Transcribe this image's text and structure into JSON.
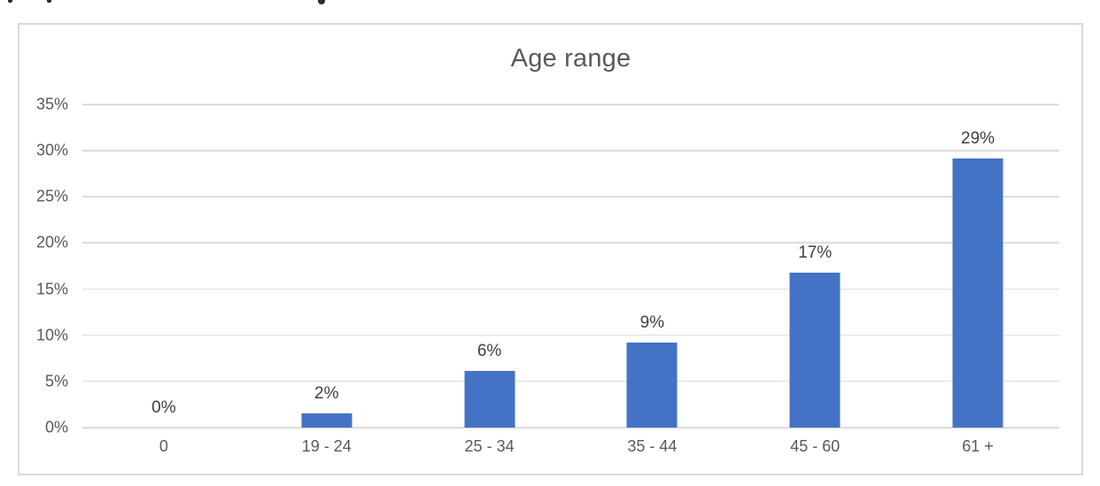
{
  "page": {
    "background_color": "#FFFFFF"
  },
  "chart_data": {
    "type": "bar",
    "title": "Age range",
    "categories": [
      "0",
      "19 - 24",
      "25 - 34",
      "35 - 44",
      "45 - 60",
      "61 +"
    ],
    "values": [
      0,
      2,
      6,
      9,
      17,
      29
    ],
    "value_labels": [
      "0%",
      "2%",
      "6%",
      "9%",
      "17%",
      "29%"
    ],
    "drawn_values": [
      0,
      1.5,
      6.1,
      9.2,
      16.8,
      29.2
    ],
    "ytick_labels": [
      "35%",
      "30%",
      "25%",
      "20%",
      "15%",
      "10%",
      "5%",
      "0%"
    ],
    "ylim": [
      0,
      35
    ],
    "ytick_step": 5,
    "xlabel": "",
    "ylabel": "",
    "grid": true,
    "legend_position": "none",
    "bar_color": "#4472C4",
    "gridline_color": "#D9D9D9",
    "axis_label_color": "#595959",
    "title_color": "#595959",
    "data_label_color": "#3F3F3F",
    "chart_border_color": "#D9D9D9"
  }
}
